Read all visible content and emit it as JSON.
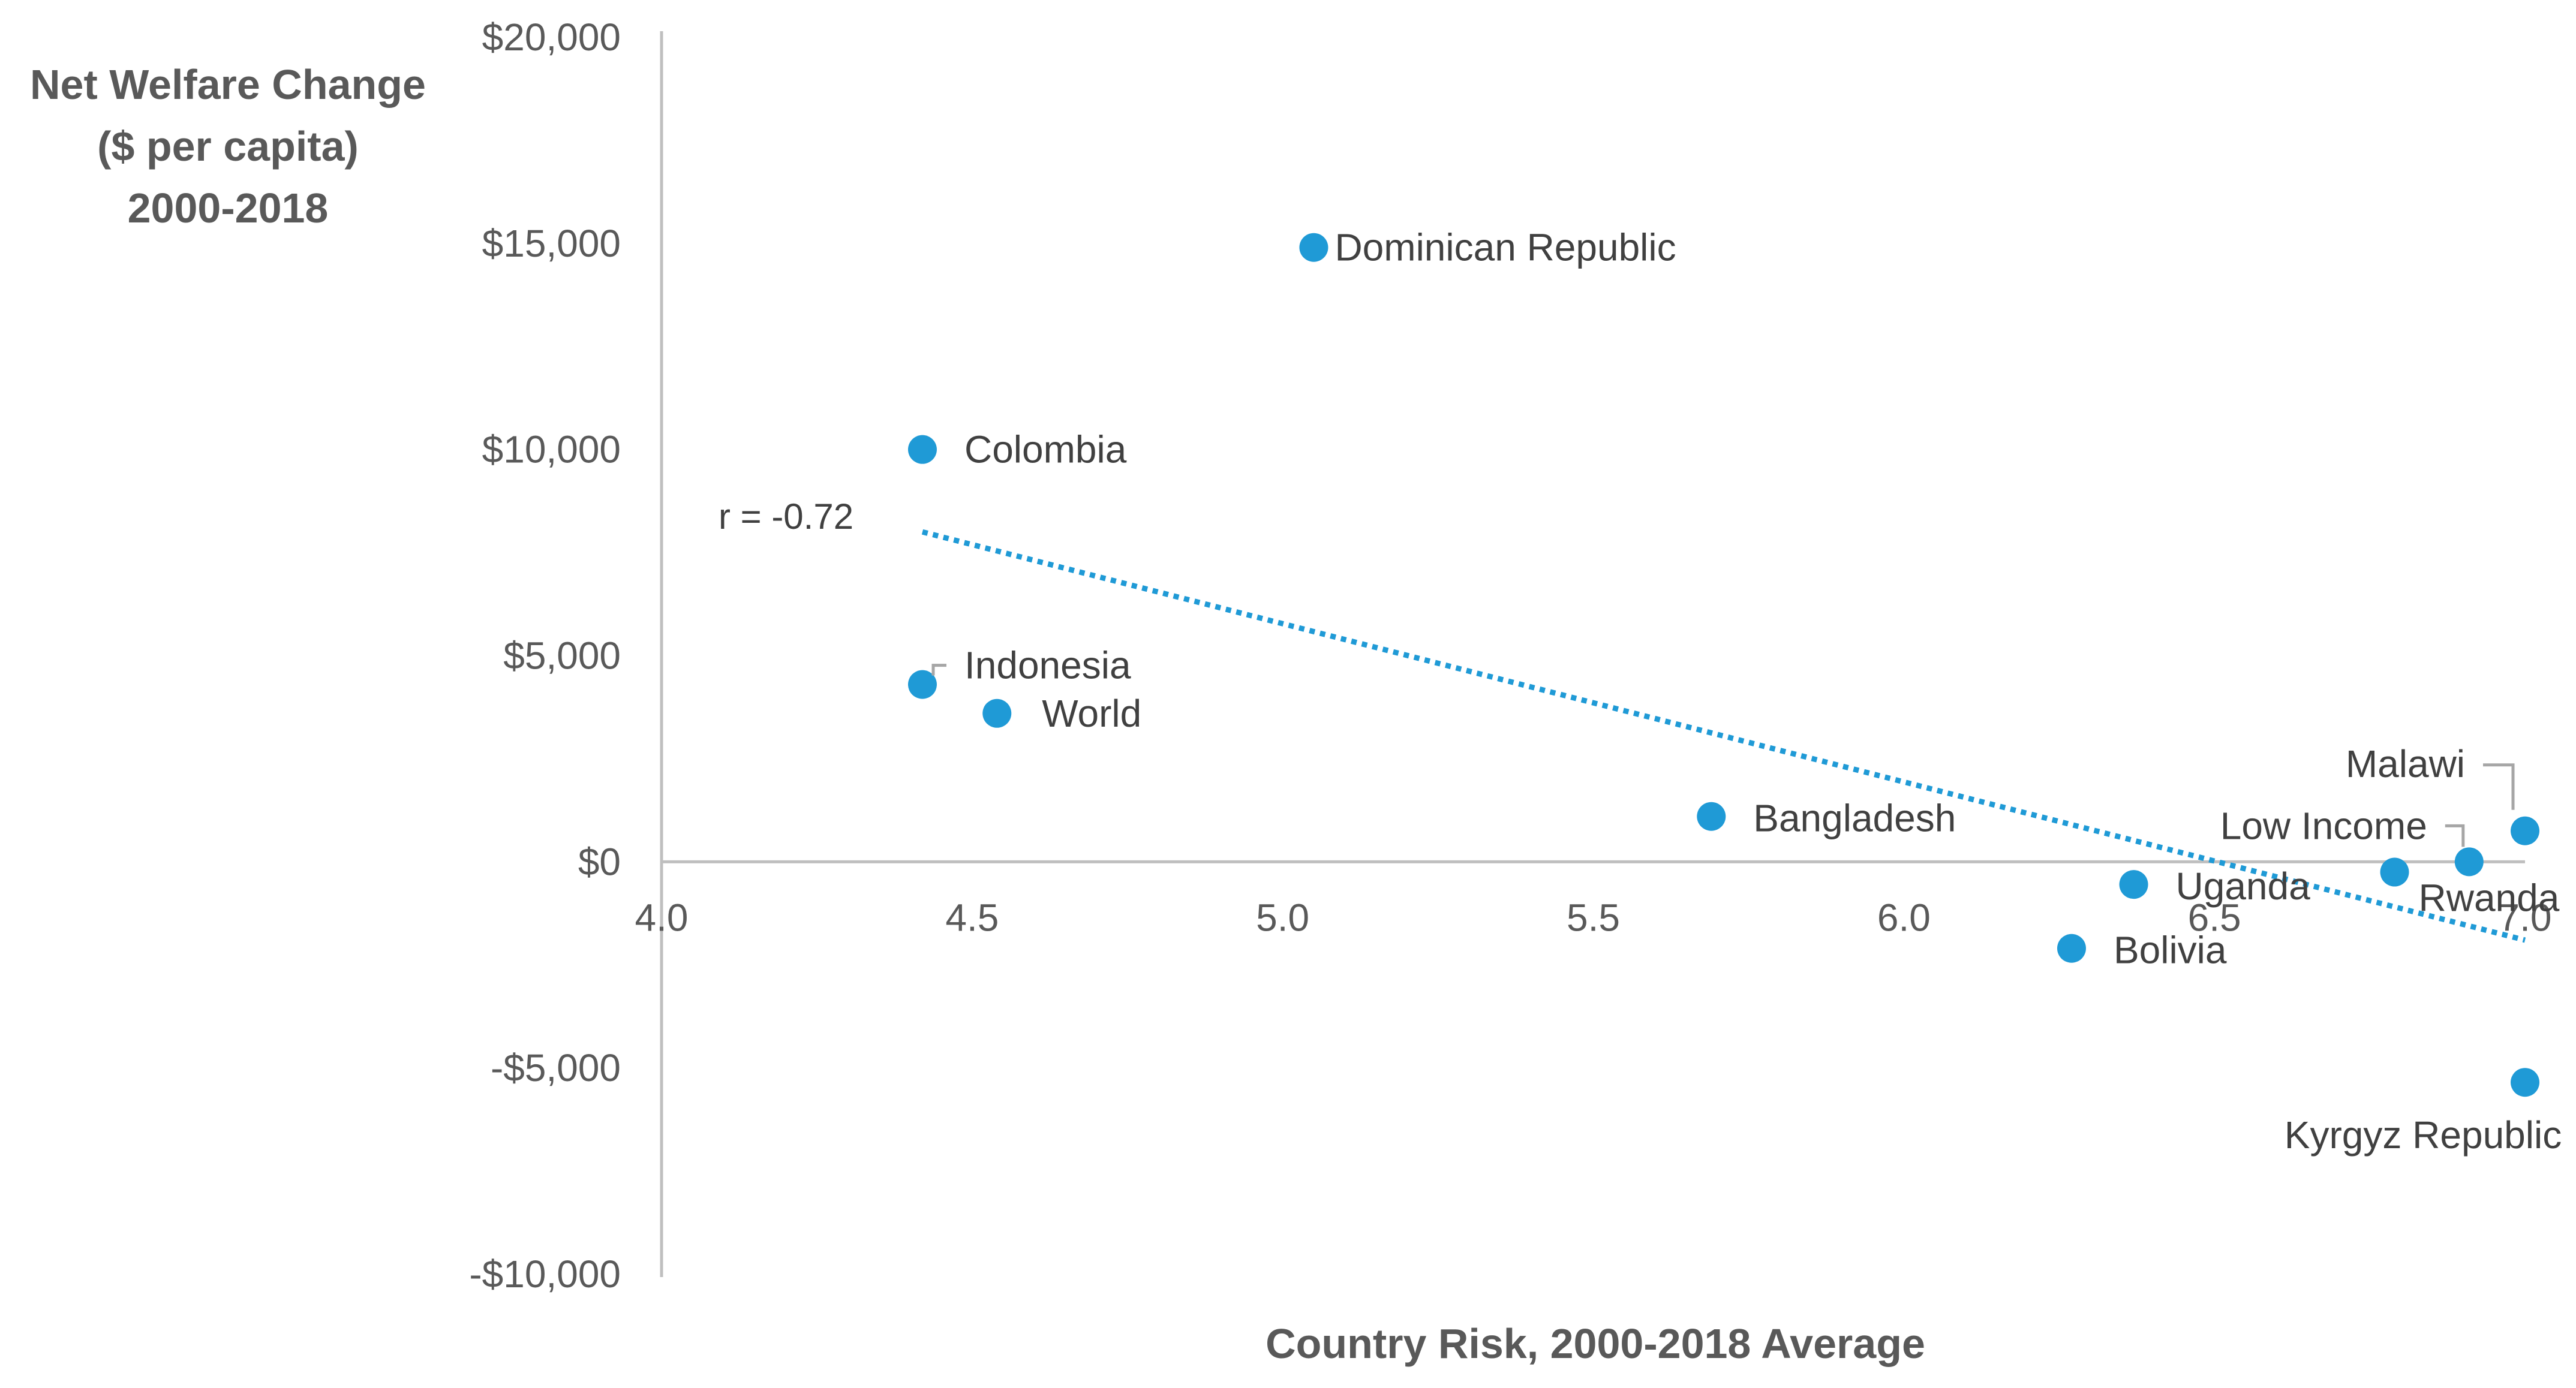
{
  "chart_data": {
    "type": "scatter",
    "title": "",
    "ylabel_lines": [
      "Net Welfare Change",
      "($ per capita)",
      "2000-2018"
    ],
    "xlabel": "Country Risk, 2000-2018 Average",
    "xlim": [
      4.0,
      7.0
    ],
    "ylim": [
      -10000,
      20000
    ],
    "x_ticks": [
      4.0,
      4.5,
      5.0,
      5.5,
      6.0,
      6.5,
      7.0
    ],
    "x_tick_labels": [
      "4.0",
      "4.5",
      "5.0",
      "5.5",
      "6.0",
      "6.5",
      "7.0"
    ],
    "y_ticks": [
      20000,
      15000,
      10000,
      5000,
      0,
      -5000,
      -10000
    ],
    "y_tick_labels": [
      "$20,000",
      "$15,000",
      "$10,000",
      "$5,000",
      "$0",
      "-$5,000",
      "-$10,000"
    ],
    "series": [
      {
        "name": "Countries",
        "color": "#1f9ad6",
        "points": [
          {
            "label": "Dominican Republic",
            "x": 5.05,
            "y": 14900
          },
          {
            "label": "Colombia",
            "x": 4.42,
            "y": 10000
          },
          {
            "label": "Indonesia",
            "x": 4.42,
            "y": 4300
          },
          {
            "label": "World",
            "x": 4.54,
            "y": 3600
          },
          {
            "label": "Bangladesh",
            "x": 5.69,
            "y": 1100
          },
          {
            "label": "Uganda",
            "x": 6.37,
            "y": -550
          },
          {
            "label": "Bolivia",
            "x": 6.27,
            "y": -2100
          },
          {
            "label": "Rwanda",
            "x": 6.79,
            "y": -250
          },
          {
            "label": "Low Income",
            "x": 6.91,
            "y": 0
          },
          {
            "label": "Malawi",
            "x": 7.0,
            "y": 750
          },
          {
            "label": "Kyrgyz Republic",
            "x": 7.0,
            "y": -5350
          }
        ]
      }
    ],
    "trendline": {
      "style": "dotted",
      "color": "#1f9ad6",
      "x": [
        4.42,
        7.0
      ],
      "y": [
        8000,
        -1900
      ],
      "annotation": "r = -0.72"
    },
    "grid": false,
    "legend": "none"
  }
}
